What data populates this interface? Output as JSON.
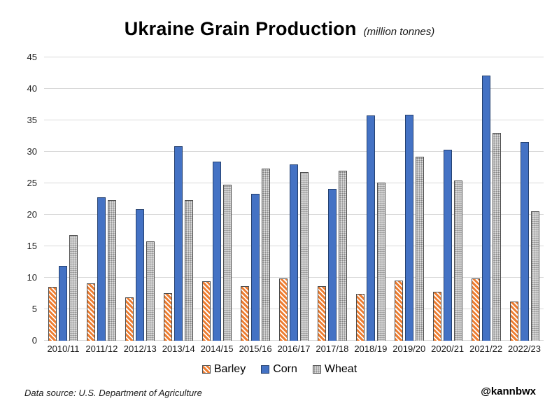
{
  "title": {
    "main": "Ukraine Grain Production",
    "subtitle": "(million tonnes)"
  },
  "footer": {
    "source": "Data source: U.S. Department of Agriculture",
    "handle": "@kannbwx"
  },
  "colors": {
    "barley": "#ED7D31",
    "corn": "#4472C4",
    "wheat_base": "#D8D8D8",
    "wheat_dot": "#838383",
    "gridline": "#D9D9D9",
    "text": "#1A1A1A"
  },
  "chart_data": {
    "type": "bar",
    "title": "Ukraine Grain Production",
    "subtitle": "(million tonnes)",
    "categories": [
      "2010/11",
      "2011/12",
      "2012/13",
      "2013/14",
      "2014/15",
      "2015/16",
      "2016/17",
      "2017/18",
      "2018/19",
      "2019/20",
      "2020/21",
      "2021/22",
      "2022/23"
    ],
    "series": [
      {
        "name": "Barley",
        "pattern": "diagonal-hatch",
        "color": "#ED7D31",
        "values": [
          8.5,
          9.1,
          6.9,
          7.6,
          9.4,
          8.7,
          9.9,
          8.7,
          7.4,
          9.5,
          7.8,
          9.9,
          6.2
        ]
      },
      {
        "name": "Corn",
        "pattern": "solid",
        "color": "#4472C4",
        "values": [
          11.9,
          22.8,
          20.9,
          30.9,
          28.4,
          23.3,
          28.0,
          24.1,
          35.8,
          35.9,
          30.3,
          42.1,
          31.5
        ]
      },
      {
        "name": "Wheat",
        "pattern": "dots",
        "color": "#BFBFBF",
        "values": [
          16.8,
          22.3,
          15.8,
          22.3,
          24.8,
          27.3,
          26.8,
          27.0,
          25.1,
          29.2,
          25.4,
          33.0,
          20.5
        ]
      }
    ],
    "xlabel": "",
    "ylabel": "",
    "ylim": [
      0,
      45
    ],
    "yticks": [
      0,
      5,
      10,
      15,
      20,
      25,
      30,
      35,
      40,
      45
    ],
    "grid": "horizontal",
    "legend_position": "bottom"
  }
}
